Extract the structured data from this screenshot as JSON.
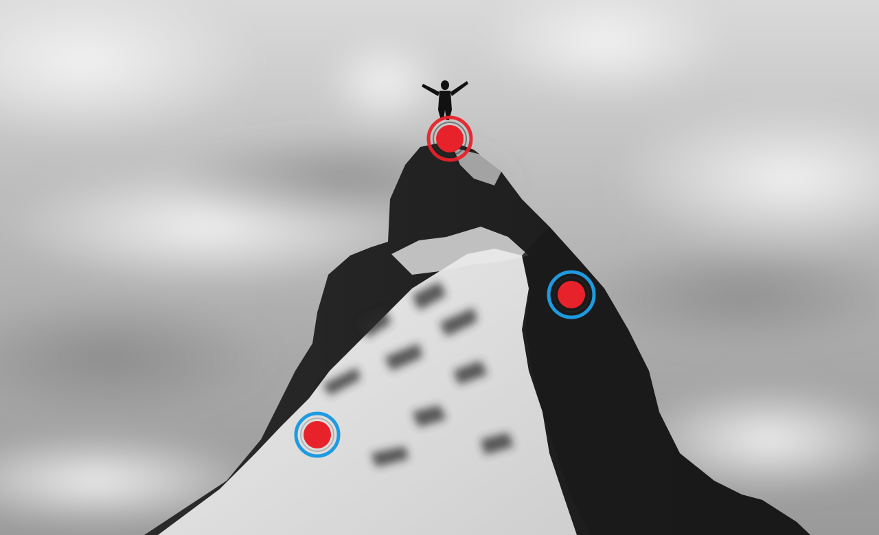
{
  "scene": {
    "subject": "mountain-summit",
    "style": "monochrome-photo-with-colored-markers",
    "colors": {
      "sky_light": "#e6e6e6",
      "sky_mid": "#b9b9b9",
      "sky_dark": "#8d8d8d",
      "rock_dark": "#1e1e1e",
      "rock_mid": "#3a3a3a",
      "snow": "#f2f2f2",
      "snow_shadow": "#cfcfcf",
      "figure": "#111111",
      "marker_fill": "#e8222a",
      "ring_summit": "#e8222a",
      "ring_waypoint": "#1e9be0"
    },
    "markers": [
      {
        "name": "summit-marker",
        "ring": "red"
      },
      {
        "name": "waypoint-marker-east-ridge",
        "ring": "blue"
      },
      {
        "name": "waypoint-marker-snowfield",
        "ring": "blue"
      }
    ]
  }
}
